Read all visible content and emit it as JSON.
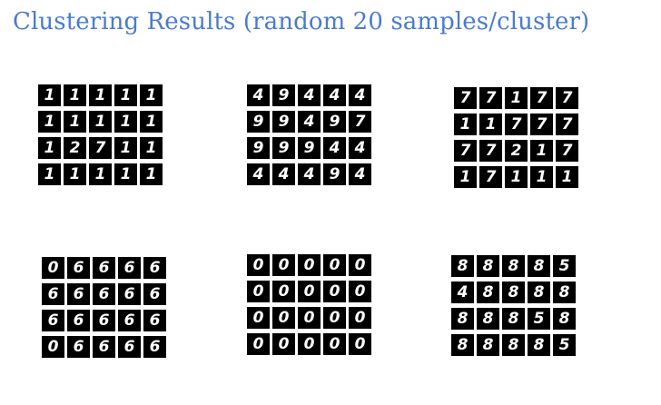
{
  "title": "Clustering Results (random 20 samples/cluster)",
  "clusters": [
    {
      "digits": [
        "1",
        "1",
        "1",
        "1",
        "1",
        "1",
        "1",
        "1",
        "1",
        "1",
        "1",
        "2",
        "7",
        "1",
        "1",
        "1",
        "1",
        "1",
        "1",
        "1"
      ]
    },
    {
      "digits": [
        "4",
        "9",
        "4",
        "4",
        "4",
        "9",
        "9",
        "4",
        "9",
        "7",
        "9",
        "9",
        "9",
        "4",
        "4",
        "4",
        "4",
        "4",
        "9",
        "4"
      ]
    },
    {
      "digits": [
        "7",
        "7",
        "1",
        "7",
        "7",
        "1",
        "1",
        "7",
        "7",
        "7",
        "7",
        "7",
        "2",
        "1",
        "7",
        "1",
        "7",
        "1",
        "1",
        "1"
      ]
    },
    {
      "digits": [
        "0",
        "6",
        "6",
        "6",
        "6",
        "6",
        "6",
        "6",
        "6",
        "6",
        "6",
        "6",
        "6",
        "6",
        "6",
        "0",
        "6",
        "6",
        "6",
        "6"
      ]
    },
    {
      "digits": [
        "0",
        "0",
        "0",
        "0",
        "0",
        "0",
        "0",
        "0",
        "0",
        "0",
        "0",
        "0",
        "0",
        "0",
        "0",
        "0",
        "0",
        "0",
        "0",
        "0"
      ]
    },
    {
      "digits": [
        "8",
        "8",
        "8",
        "8",
        "5",
        "4",
        "8",
        "8",
        "8",
        "8",
        "8",
        "8",
        "8",
        "5",
        "8",
        "8",
        "8",
        "8",
        "8",
        "5"
      ]
    }
  ]
}
